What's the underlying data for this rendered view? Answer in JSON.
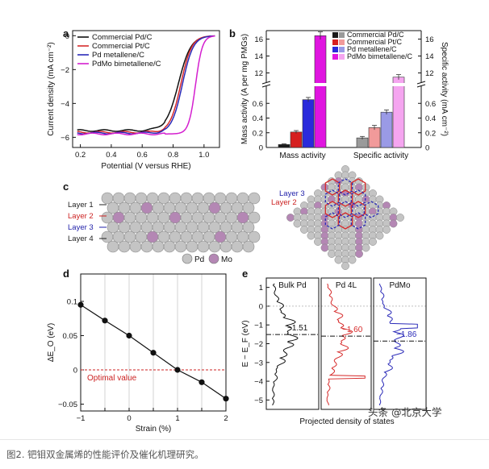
{
  "caption": "图2. 钯钼双金属烯的性能评价及催化机理研究。",
  "watermark": "头条 @北京大学",
  "panel_labels": {
    "a": "a",
    "b": "b",
    "c": "c",
    "d": "d",
    "e": "e"
  },
  "colors": {
    "pd_c": "#111111",
    "pt_c": "#d62b2b",
    "pd_metallene": "#2a2ab8",
    "pdmo": "#d41fcf",
    "pd_atom": "#c4c4c4",
    "mo_atom": "#b487b4",
    "optimal": "#cc2222"
  },
  "chart_data": [
    {
      "panel": "a",
      "type": "line",
      "xlabel": "Potential (V versus RHE)",
      "ylabel": "Current density (mA cm⁻²)",
      "xlim": [
        0.15,
        1.1
      ],
      "ylim": [
        -6.6,
        0.3
      ],
      "xticks": [
        0.2,
        0.4,
        0.6,
        0.8,
        1.0
      ],
      "xtick_labels": [
        "0.2",
        "0.4",
        "0.6",
        "0.8",
        "1.0"
      ],
      "yticks": [
        -6,
        -4,
        -2,
        0
      ],
      "ytick_labels": [
        "−6",
        "−4",
        "−2",
        "0"
      ],
      "legend_position": "top-left",
      "series": [
        {
          "name": "Commercial Pd/C",
          "color": "#111111",
          "limit": -5.6,
          "half_wave": 0.835,
          "width": 0.04
        },
        {
          "name": "Commercial Pt/C",
          "color": "#d62b2b",
          "limit": -5.7,
          "half_wave": 0.85,
          "width": 0.035
        },
        {
          "name": "Pd metallene/C",
          "color": "#2a2ab8",
          "limit": -5.75,
          "half_wave": 0.86,
          "width": 0.035
        },
        {
          "name": "PdMo bimetallene/C",
          "color": "#d41fcf",
          "limit": -5.8,
          "half_wave": 0.945,
          "width": 0.022
        }
      ]
    },
    {
      "panel": "b",
      "type": "bar",
      "ylabel": "Mass activity (A per mg PMGs)",
      "ylabel_right": "Specific activity (mA cm⁻²)",
      "categories": [
        "Mass activity",
        "Specific activity"
      ],
      "ylim_lower": [
        0,
        0.8
      ],
      "ylim_upper": [
        11,
        17
      ],
      "yticks_lower": [
        0,
        0.2,
        0.4,
        0.6
      ],
      "ytick_labels_lower": [
        "0",
        "0.2",
        "0.4",
        "0.6"
      ],
      "yticks_upper": [
        12,
        14,
        16
      ],
      "ytick_labels_upper": [
        "12",
        "14",
        "16"
      ],
      "legend_position": "top-right",
      "series": [
        {
          "name": "Commercial Pd/C",
          "colors": [
            "#1a1a1a",
            "#9a9a9a"
          ],
          "values": [
            0.04,
            0.13
          ],
          "errors": [
            0.01,
            0.02
          ]
        },
        {
          "name": "Commercial Pt/C",
          "colors": [
            "#d62020",
            "#f19a9a"
          ],
          "values": [
            0.21,
            0.27
          ],
          "errors": [
            0.02,
            0.03
          ]
        },
        {
          "name": "Pd metallene/C",
          "colors": [
            "#2a2adb",
            "#9a9ae6"
          ],
          "values": [
            0.65,
            0.48
          ],
          "errors": [
            0.03,
            0.03
          ]
        },
        {
          "name": "PdMo bimetallene/C",
          "colors": [
            "#e015e0",
            "#f5a5f0"
          ],
          "values": [
            16.4,
            11.5
          ],
          "errors": [
            0.45,
            0.3
          ]
        }
      ]
    },
    {
      "panel": "d",
      "type": "line",
      "xlabel": "Strain (%)",
      "ylabel": "ΔE_O (eV)",
      "xlim": [
        -1,
        2
      ],
      "ylim": [
        -0.06,
        0.14
      ],
      "xticks": [
        -1,
        -0.5,
        0,
        0.5,
        1,
        1.5,
        2
      ],
      "xtick_labels": [
        "−1",
        "",
        "0",
        "",
        "1",
        "",
        "2"
      ],
      "yticks": [
        -0.05,
        0,
        0.05,
        0.1
      ],
      "ytick_labels": [
        "−0.05",
        "0",
        "0.05",
        "0.1"
      ],
      "x": [
        -1,
        -0.5,
        0,
        0.5,
        1,
        1.5,
        2
      ],
      "y": [
        0.095,
        0.072,
        0.05,
        0.025,
        0.0,
        -0.018,
        -0.042
      ],
      "reference_line": {
        "y": 0,
        "label": "Optimal value"
      }
    },
    {
      "panel": "e",
      "type": "line",
      "xlabel": "Projected density of states",
      "ylabel": "E − E_F (eV)",
      "ylim": [
        -5.5,
        1.5
      ],
      "yticks": [
        1,
        0,
        -1,
        -2,
        -3,
        -4,
        -5
      ],
      "ytick_labels": [
        "1",
        "0",
        "−1",
        "−2",
        "−3",
        "−4",
        "−5"
      ],
      "series": [
        {
          "name": "Bulk Pd",
          "color": "#111111",
          "d_band_center": -1.51,
          "d_band_label": "−1.51"
        },
        {
          "name": "Pd 4L",
          "color": "#d62b2b",
          "d_band_center": -1.6,
          "d_band_label": "−1.60"
        },
        {
          "name": "PdMo",
          "color": "#2a2ab8",
          "d_band_center": -1.86,
          "d_band_label": "−1.86"
        }
      ]
    }
  ],
  "panel_c": {
    "layers": [
      "Layer 1",
      "Layer 2",
      "Layer 3",
      "Layer 4"
    ],
    "layer_colors": [
      "#222222",
      "#cc2222",
      "#2222aa",
      "#222222"
    ],
    "diamond_layers": [
      "Layer 3",
      "Layer 2"
    ],
    "legend": [
      {
        "label": "Pd",
        "color": "#c4c4c4"
      },
      {
        "label": "Mo",
        "color": "#b487b4"
      }
    ]
  }
}
